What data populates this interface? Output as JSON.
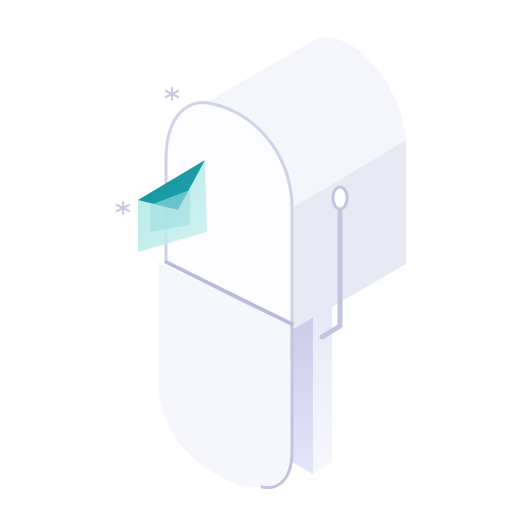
{
  "illustration": {
    "subject": "mailbox-with-envelope-icon",
    "colors": {
      "body_light": "#f5f6fb",
      "body_side": "#e7e9f3",
      "outline": "#c9cbe3",
      "outline_dark": "#b9bbd8",
      "post_front": "#d6d8f2",
      "post_side": "#eef0fa",
      "envelope_dark": "#1f8f8e",
      "envelope_light": "#7fd4d4",
      "sparkle": "#c9cbe0"
    },
    "icons": [
      "mailbox-icon",
      "envelope-icon",
      "sparkle-icon",
      "mailbox-flag-icon",
      "mailbox-post-icon"
    ]
  }
}
